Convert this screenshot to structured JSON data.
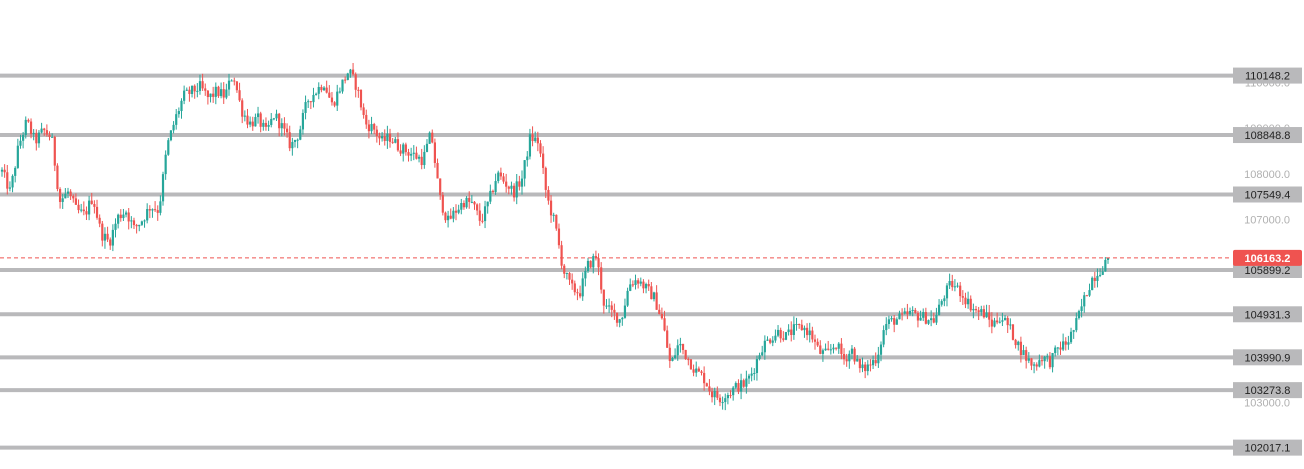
{
  "chart_data": {
    "type": "candlestick",
    "title": "",
    "xlabel": "",
    "ylabel": "",
    "ylim": [
      101550,
      111800
    ],
    "grid": false,
    "legend": "none",
    "colors": {
      "up": "#26a69a",
      "down": "#ef5350",
      "level_line": "#b9b9bb",
      "level_label_bg": "#b9b9bb",
      "current_price_bg": "#ef5350",
      "axis_text": "#b0b0b0"
    },
    "axis_ticks": [
      "110000.0",
      "109000.0",
      "108000.0",
      "107000.0",
      "103000.0"
    ],
    "levels": [
      {
        "value": 110148.2,
        "label": "110148.2"
      },
      {
        "value": 108848.8,
        "label": "108848.8"
      },
      {
        "value": 107549.4,
        "label": "107549.4"
      },
      {
        "value": 105899.2,
        "label": "105899.2"
      },
      {
        "value": 104931.3,
        "label": "104931.3"
      },
      {
        "value": 103990.9,
        "label": "103990.9"
      },
      {
        "value": 103273.8,
        "label": "103273.8"
      },
      {
        "value": 102017.1,
        "label": "102017.1"
      }
    ],
    "current_price": {
      "value": 106163.2,
      "label": "106163.2"
    },
    "close_path": [
      108050,
      107600,
      108600,
      109150,
      108700,
      108950,
      108800,
      107400,
      107600,
      107200,
      107100,
      107500,
      106700,
      106500,
      107050,
      107200,
      106800,
      107000,
      107300,
      107200,
      108600,
      109200,
      109700,
      109800,
      109900,
      109650,
      109800,
      109700,
      110200,
      109400,
      109100,
      109200,
      108900,
      109300,
      109000,
      108600,
      108900,
      109600,
      109800,
      110000,
      109500,
      109900,
      110250,
      109900,
      109100,
      109000,
      108700,
      108800,
      108600,
      108500,
      108400,
      108300,
      108900,
      107500,
      106950,
      107200,
      107400,
      107350,
      106950,
      107400,
      108000,
      107800,
      107600,
      107900,
      108800,
      108700,
      107500,
      106900,
      105900,
      105500,
      105400,
      106000,
      106200,
      105100,
      104950,
      104800,
      105600,
      105700,
      105500,
      105300,
      104800,
      103800,
      104300,
      104000,
      103700,
      103550,
      103200,
      103100,
      103200,
      103350,
      103400,
      103700,
      104200,
      104400,
      104550,
      104450,
      104600,
      104650,
      104500,
      104100,
      104050,
      104300,
      103950,
      104150,
      103700,
      103800,
      104000,
      104700,
      104800,
      104850,
      104950,
      104900,
      104850,
      104800,
      105300,
      105600,
      105450,
      105200,
      105000,
      104950,
      104700,
      104900,
      104650,
      104300,
      104000,
      103800,
      104000,
      103900,
      104200,
      104300,
      104650,
      105200,
      105700,
      105900,
      106163.2
    ]
  }
}
